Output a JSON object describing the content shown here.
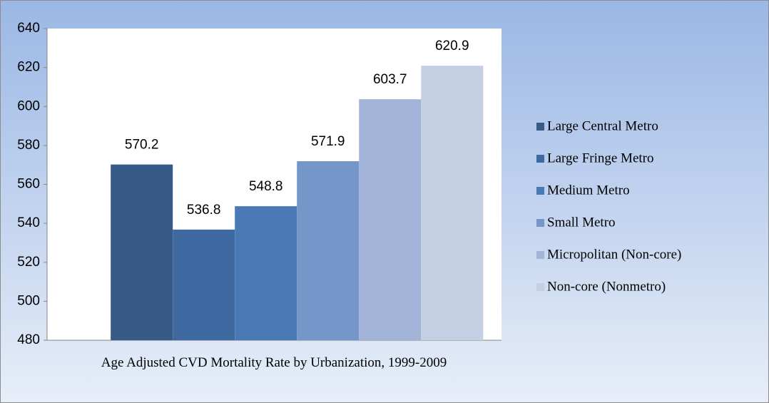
{
  "chart_data": {
    "type": "bar",
    "categories": [
      "Age Adjusted CVD Mortality Rate by Urbanization, 1999-2009"
    ],
    "series": [
      {
        "name": "Large Central Metro",
        "color": "#375a87",
        "values": [
          570.2
        ]
      },
      {
        "name": "Large Fringe Metro",
        "color": "#3e69a1",
        "values": [
          536.8
        ]
      },
      {
        "name": "Medium Metro",
        "color": "#4a7ab6",
        "values": [
          548.8
        ]
      },
      {
        "name": "Small Metro",
        "color": "#7596c8",
        "values": [
          571.9
        ]
      },
      {
        "name": "Micropolitan (Non-core)",
        "color": "#a2b5d8",
        "values": [
          603.7
        ]
      },
      {
        "name": "Non-core (Nonmetro)",
        "color": "#c5cfe3",
        "values": [
          620.9
        ]
      }
    ],
    "ylim": [
      480,
      640
    ],
    "yticks": [
      480,
      500,
      520,
      540,
      560,
      580,
      600,
      620,
      640
    ],
    "grid": false,
    "legend": "right"
  }
}
